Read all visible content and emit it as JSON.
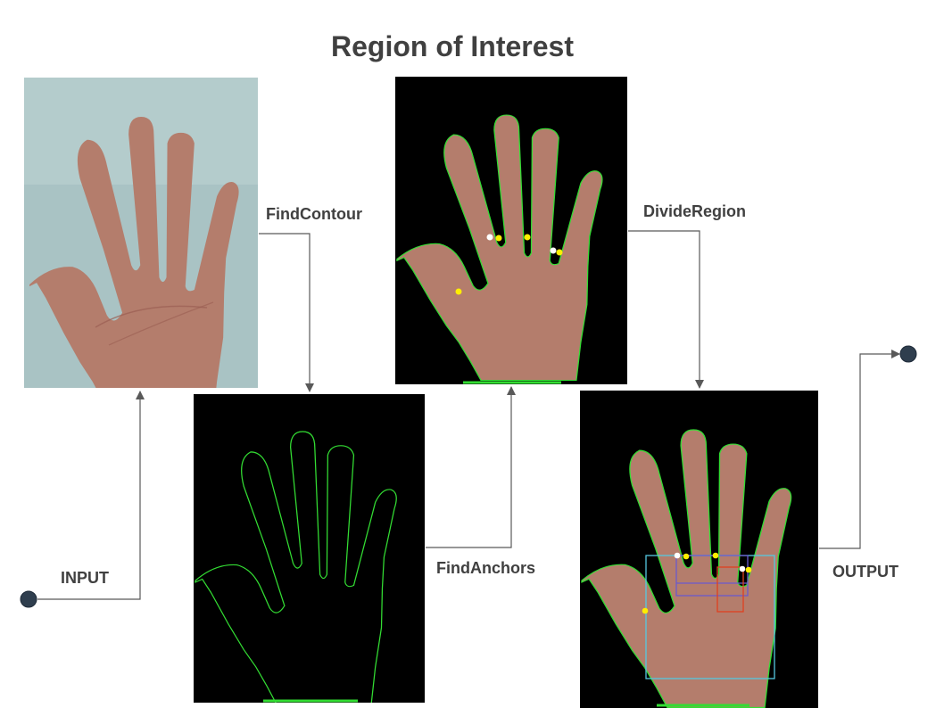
{
  "title": "Region of Interest",
  "labels": {
    "input": "INPUT",
    "find_contour": "FindContour",
    "find_anchors": "FindAnchors",
    "divide_region": "DivideRegion",
    "output": "OUTPUT"
  },
  "colors": {
    "text": "#404040",
    "connector": "#595959",
    "endpoint": "#2f3e4e",
    "contour": "#33dd33",
    "anchor_yellow": "#ffee00",
    "anchor_white": "#ffffff",
    "roi_outer": "#55c8e0",
    "roi_inner": "#6a5acd",
    "roi_red": "#e04020",
    "photo_bg": "#a9c3c4",
    "skin": "#b47d6c"
  }
}
